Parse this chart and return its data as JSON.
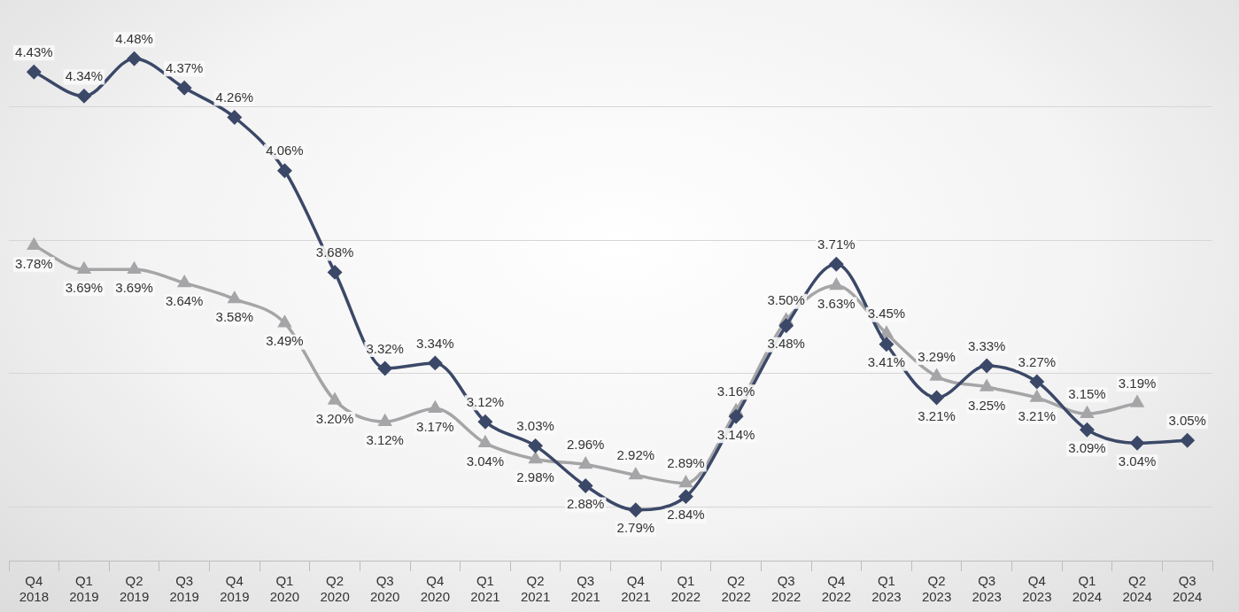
{
  "chart_data": {
    "type": "line",
    "categories": [
      "Q4 2018",
      "Q1 2019",
      "Q2 2019",
      "Q3 2019",
      "Q4 2019",
      "Q1 2020",
      "Q2 2020",
      "Q3 2020",
      "Q4 2020",
      "Q1 2021",
      "Q2 2021",
      "Q3 2021",
      "Q4 2021",
      "Q1 2022",
      "Q2 2022",
      "Q3 2022",
      "Q4 2022",
      "Q1 2023",
      "Q2 2023",
      "Q3 2023",
      "Q4 2023",
      "Q1 2024",
      "Q2 2024",
      "Q3 2024"
    ],
    "series": [
      {
        "color": "#3b4868",
        "marker": "diamond",
        "values": [
          4.43,
          4.34,
          4.48,
          4.37,
          4.26,
          4.06,
          3.68,
          3.32,
          3.34,
          3.12,
          3.03,
          2.88,
          2.79,
          2.84,
          3.14,
          3.48,
          3.71,
          3.41,
          3.21,
          3.33,
          3.27,
          3.09,
          3.04,
          3.05
        ],
        "value_labels": [
          "4.43%",
          "4.34%",
          "4.48%",
          "4.37%",
          "4.26%",
          "4.06%",
          "3.68%",
          "3.32%",
          "3.34%",
          "3.12%",
          "3.03%",
          "2.88%",
          "2.79%",
          "2.84%",
          "3.14%",
          "3.48%",
          "3.71%",
          "3.41%",
          "3.21%",
          "3.33%",
          "3.27%",
          "3.09%",
          "3.04%",
          "3.05%"
        ]
      },
      {
        "color": "#a5a5a8",
        "marker": "triangle",
        "values": [
          3.78,
          3.69,
          3.69,
          3.64,
          3.58,
          3.49,
          3.2,
          3.12,
          3.17,
          3.04,
          2.98,
          2.96,
          2.92,
          2.89,
          3.16,
          3.5,
          3.63,
          3.45,
          3.29,
          3.25,
          3.21,
          3.15,
          3.19,
          null
        ],
        "value_labels": [
          "3.78%",
          "3.69%",
          "3.69%",
          "3.64%",
          "3.58%",
          "3.49%",
          "3.20%",
          "3.12%",
          "3.17%",
          "3.04%",
          "2.98%",
          "2.96%",
          "2.92%",
          "2.89%",
          "3.16%",
          "3.50%",
          "3.63%",
          "3.45%",
          "3.29%",
          "3.25%",
          "3.21%",
          "3.15%",
          "3.19%",
          null
        ]
      }
    ],
    "yticks": [
      {
        "value": 2.8,
        "label": null
      },
      {
        "value": 3.3,
        "label": null
      },
      {
        "value": 3.8,
        "label": null
      },
      {
        "value": 4.3,
        "label": null
      }
    ],
    "grid": "y",
    "tick_labels": "x",
    "legend": false
  }
}
